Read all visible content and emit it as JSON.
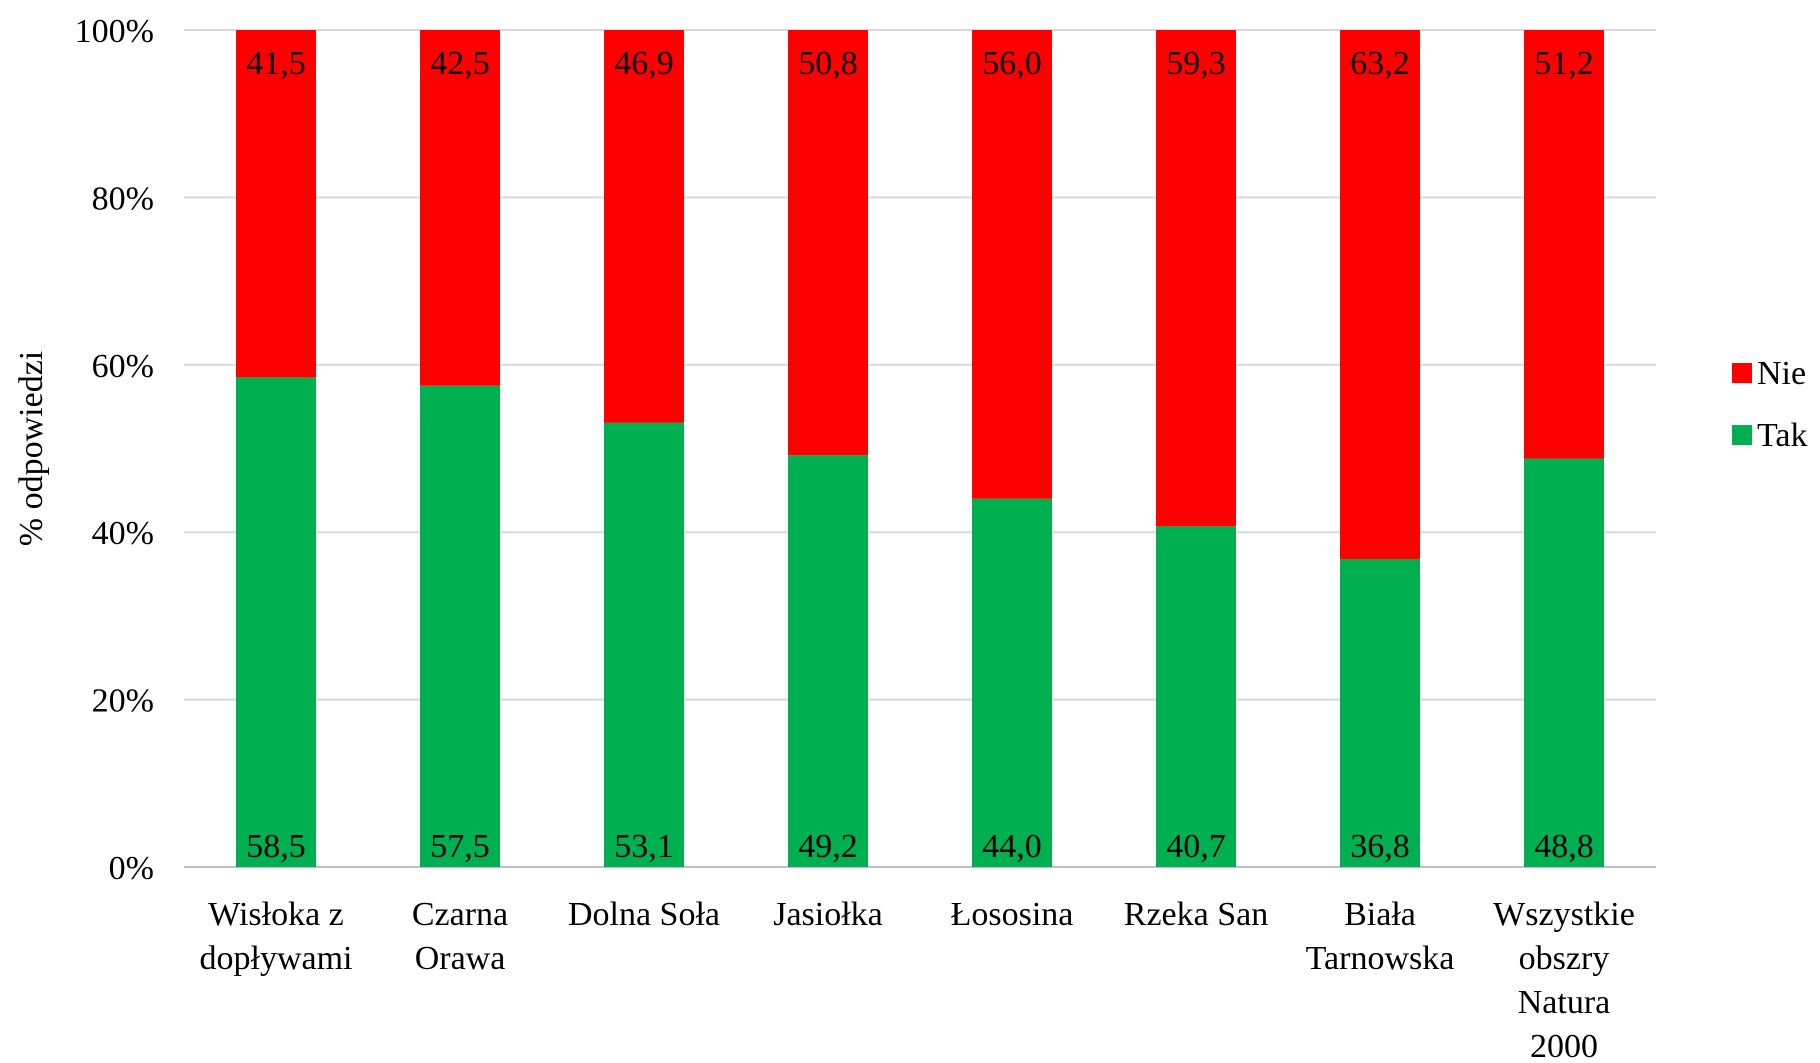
{
  "chart_data": {
    "type": "bar",
    "stacked": true,
    "normalized": true,
    "title": "",
    "xlabel": "",
    "ylabel": "% odpowiedzi",
    "ylim": [
      0,
      100
    ],
    "yticks": [
      "0%",
      "20%",
      "40%",
      "60%",
      "80%",
      "100%"
    ],
    "grid": true,
    "legend_position": "right",
    "categories": [
      [
        "Wisłoka z",
        "dopływami"
      ],
      [
        "Czarna",
        "Orawa"
      ],
      [
        "Dolna Soła"
      ],
      [
        "Jasiołka"
      ],
      [
        "Łososina"
      ],
      [
        "Rzeka San"
      ],
      [
        "Biała",
        "Tarnowska"
      ],
      [
        "Wszystkie",
        "obszry",
        "Natura",
        "2000"
      ]
    ],
    "series": [
      {
        "name": "Tak",
        "color": "#00b050",
        "values": [
          58.5,
          57.5,
          53.1,
          49.2,
          44.0,
          40.7,
          36.8,
          48.8
        ],
        "labels": [
          "58,5",
          "57,5",
          "53,1",
          "49,2",
          "44,0",
          "40,7",
          "36,8",
          "48,8"
        ]
      },
      {
        "name": "Nie",
        "color": "#ff0000",
        "values": [
          41.5,
          42.5,
          46.9,
          50.8,
          56.0,
          59.3,
          63.2,
          51.2
        ],
        "labels": [
          "41,5",
          "42,5",
          "46,9",
          "50,8",
          "56,0",
          "59,3",
          "63,2",
          "51,2"
        ]
      }
    ],
    "legend_order": [
      "Nie",
      "Tak"
    ]
  }
}
